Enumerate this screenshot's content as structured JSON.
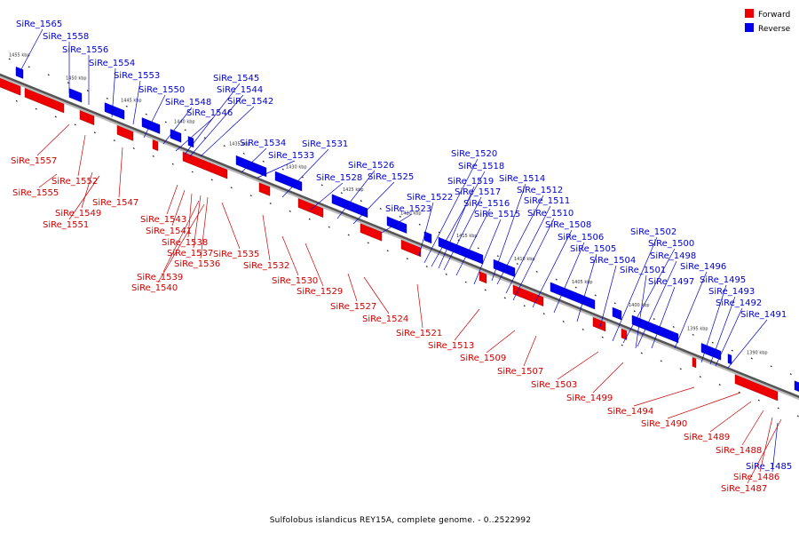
{
  "legend": {
    "forward_label": "Forward",
    "reverse_label": "Reverse",
    "forward_color": "#ee0000",
    "reverse_color": "#0000ee"
  },
  "caption": "Sulfolobus islandicus REY15A, complete genome. - 0..2522992",
  "kbp_ticks": [
    "1455 kbp",
    "1450 kbp",
    "1445 kbp",
    "1440 kbp",
    "1435 kbp",
    "1430 kbp",
    "1425 kbp",
    "1420 kbp",
    "1415 kbp",
    "1410 kbp",
    "1405 kbp",
    "1400 kbp",
    "1395 kbp",
    "1390 kbp"
  ],
  "reverse_genes": [
    "SiRe_1565",
    "SiRe_1558",
    "SiRe_1556",
    "SiRe_1554",
    "SiRe_1553",
    "SiRe_1550",
    "SiRe_1548",
    "SiRe_1546",
    "SiRe_1545",
    "SiRe_1544",
    "SiRe_1542",
    "SiRe_1534",
    "SiRe_1533",
    "SiRe_1531",
    "SiRe_1528",
    "SiRe_1526",
    "SiRe_1525",
    "SiRe_1523",
    "SiRe_1522",
    "SiRe_1520",
    "SiRe_1518",
    "SiRe_1519",
    "SiRe_1517",
    "SiRe_1516",
    "SiRe_1515",
    "SiRe_1514",
    "SiRe_1512",
    "SiRe_1511",
    "SiRe_1510",
    "SiRe_1508",
    "SiRe_1506",
    "SiRe_1505",
    "SiRe_1504",
    "SiRe_1502",
    "SiRe_1500",
    "SiRe_1498",
    "SiRe_1501",
    "SiRe_1497",
    "SiRe_1496",
    "SiRe_1495",
    "SiRe_1493",
    "SiRe_1492",
    "SiRe_1491",
    "SiRe_1485"
  ],
  "forward_genes": [
    "SiRe_1557",
    "SiRe_1555",
    "SiRe_1552",
    "SiRe_1549",
    "SiRe_1551",
    "SiRe_1547",
    "SiRe_1543",
    "SiRe_1541",
    "SiRe_1538",
    "SiRe_1537",
    "SiRe_1536",
    "SiRe_1539",
    "SiRe_1540",
    "SiRe_1535",
    "SiRe_1532",
    "SiRe_1530",
    "SiRe_1529",
    "SiRe_1527",
    "SiRe_1524",
    "SiRe_1521",
    "SiRe_1513",
    "SiRe_1509",
    "SiRe_1507",
    "SiRe_1503",
    "SiRe_1499",
    "SiRe_1494",
    "SiRe_1490",
    "SiRe_1489",
    "SiRe_1488",
    "SiRe_1486",
    "SiRe_1487"
  ]
}
